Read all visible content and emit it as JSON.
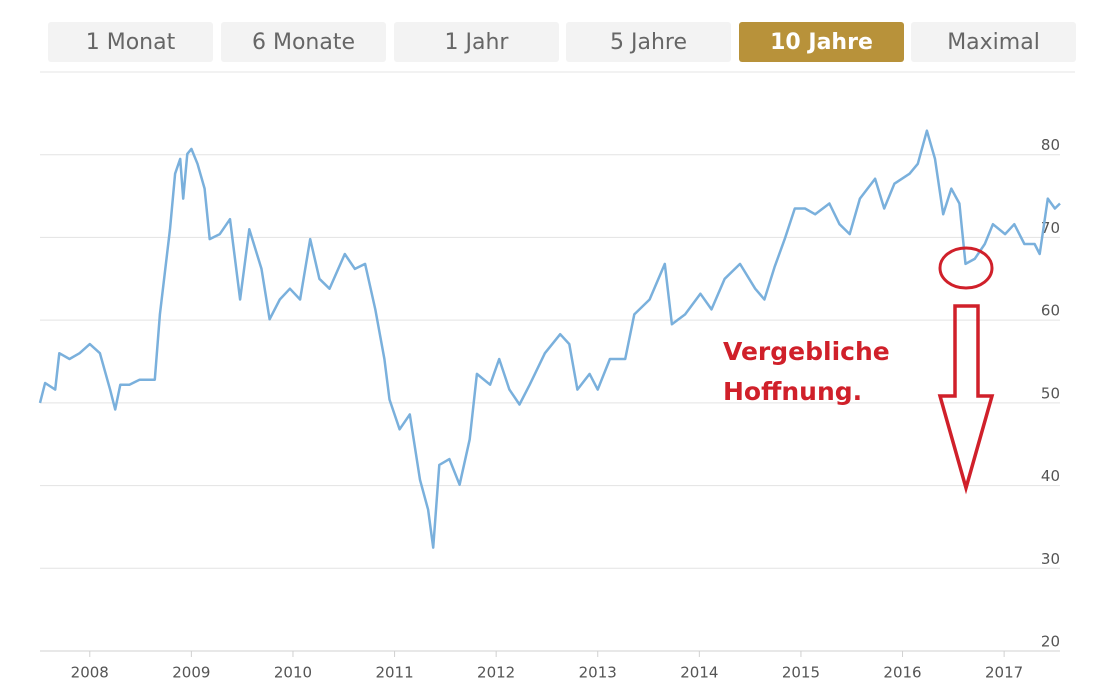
{
  "tabs": [
    "1 Monat",
    "6 Monate",
    "1 Jahr",
    "5 Jahre",
    "10 Jahre",
    "Maximal"
  ],
  "active_tab": 4,
  "chart_data": {
    "type": "line",
    "x": [
      2007.51,
      2007.56,
      2007.66,
      2007.7,
      2007.8,
      2007.9,
      2008.0,
      2008.1,
      2008.2,
      2008.25,
      2008.3,
      2008.39,
      2008.49,
      2008.64,
      2008.69,
      2008.79,
      2008.84,
      2008.89,
      2008.92,
      2008.96,
      2009.0,
      2009.06,
      2009.13,
      2009.18,
      2009.28,
      2009.38,
      2009.48,
      2009.57,
      2009.69,
      2009.77,
      2009.87,
      2009.97,
      2010.07,
      2010.17,
      2010.26,
      2010.36,
      2010.51,
      2010.61,
      2010.71,
      2010.81,
      2010.9,
      2010.95,
      2011.05,
      2011.15,
      2011.25,
      2011.33,
      2011.38,
      2011.44,
      2011.54,
      2011.64,
      2011.74,
      2011.81,
      2011.94,
      2012.03,
      2012.13,
      2012.23,
      2012.33,
      2012.48,
      2012.63,
      2012.72,
      2012.8,
      2012.92,
      2013.0,
      2013.12,
      2013.27,
      2013.36,
      2013.51,
      2013.66,
      2013.73,
      2013.86,
      2014.01,
      2014.12,
      2014.25,
      2014.4,
      2014.55,
      2014.64,
      2014.74,
      2014.84,
      2014.94,
      2015.04,
      2015.14,
      2015.28,
      2015.38,
      2015.48,
      2015.58,
      2015.73,
      2015.82,
      2015.92,
      2016.07,
      2016.15,
      2016.24,
      2016.32,
      2016.4,
      2016.48,
      2016.56,
      2016.62,
      2016.71,
      2016.81,
      2016.89,
      2017.01,
      2017.1,
      2017.2,
      2017.3,
      2017.35,
      2017.43,
      2017.5,
      2017.55
    ],
    "series": [
      {
        "color": "#7ab0dc",
        "values": [
          50,
          52.4,
          51.6,
          56,
          55.3,
          56,
          57.1,
          56,
          51.6,
          49.2,
          52.2,
          52.2,
          52.8,
          52.8,
          60.7,
          71,
          77.7,
          79.5,
          74.7,
          80.1,
          80.7,
          78.9,
          75.9,
          69.8,
          70.4,
          72.2,
          62.5,
          71,
          66.2,
          60.1,
          62.5,
          63.8,
          62.5,
          69.8,
          65,
          63.8,
          68,
          66.2,
          66.8,
          61.3,
          55.3,
          50.4,
          46.8,
          48.6,
          40.7,
          37.1,
          32.5,
          42.5,
          43.2,
          40.1,
          45.6,
          53.5,
          52.2,
          55.3,
          51.6,
          49.8,
          52.2,
          56,
          58.3,
          57.1,
          51.6,
          53.5,
          51.6,
          55.3,
          55.3,
          60.7,
          62.5,
          66.8,
          59.5,
          60.7,
          63.2,
          61.3,
          65,
          66.8,
          63.8,
          62.5,
          66.4,
          69.8,
          73.5,
          73.5,
          72.8,
          74.1,
          71.6,
          70.4,
          74.7,
          77.1,
          73.5,
          76.5,
          77.7,
          78.9,
          82.9,
          79.5,
          72.8,
          75.9,
          74.1,
          66.8,
          67.4,
          69.2,
          71.6,
          70.4,
          71.6,
          69.2,
          69.2,
          68,
          74.7,
          73.5,
          74.1
        ]
      }
    ],
    "xlim": [
      2007.51,
      2017.55
    ],
    "xticks": [
      2008,
      2009,
      2010,
      2011,
      2012,
      2013,
      2014,
      2015,
      2016,
      2017
    ],
    "ylim": [
      20,
      90
    ],
    "yticks": [
      20,
      30,
      40,
      50,
      60,
      70,
      80
    ],
    "grid": true,
    "annotation": [
      "Vergebliche",
      "Hoffnung."
    ]
  }
}
